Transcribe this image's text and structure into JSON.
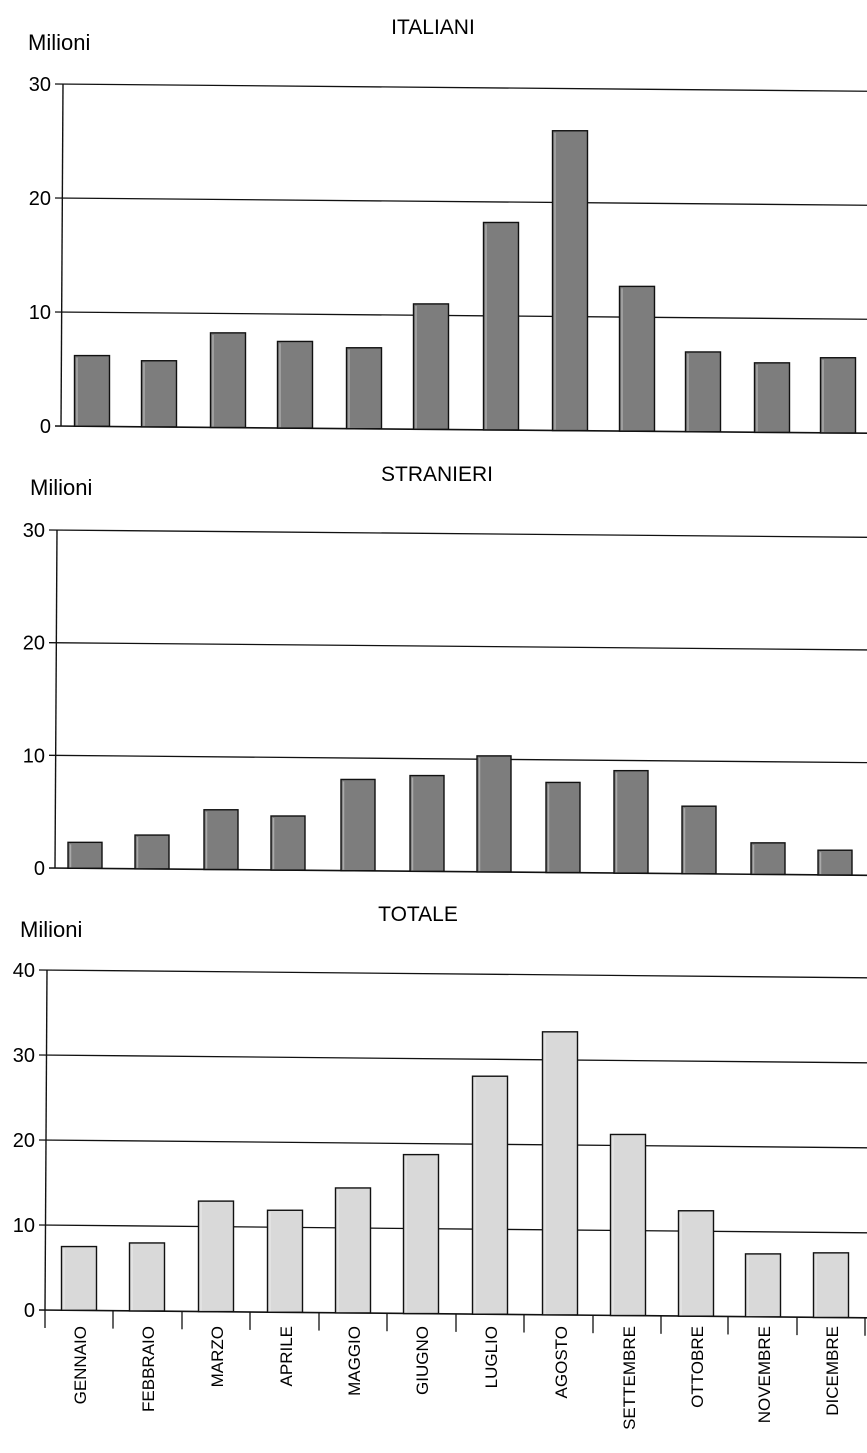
{
  "categories": [
    "GENNAIO",
    "FEBBRAIO",
    "MARZO",
    "APRILE",
    "MAGGIO",
    "GIUGNO",
    "LUGLIO",
    "AGOSTO",
    "SETTEMBRE",
    "OTTOBRE",
    "NOVEMBRE",
    "DICEMBRE"
  ],
  "colors": {
    "dark_bar": "#7d7d7d",
    "light_bar": "#d9d9d9",
    "line": "#111111",
    "background": "#ffffff"
  },
  "chart_data": [
    {
      "type": "bar",
      "title": "ITALIANI",
      "ylabel": "Milioni",
      "xlabel": "",
      "ylim": [
        0,
        30
      ],
      "yticks": [
        0,
        10,
        20,
        30
      ],
      "grid": true,
      "bar_color": "#7d7d7d",
      "categories": [
        "GENNAIO",
        "FEBBRAIO",
        "MARZO",
        "APRILE",
        "MAGGIO",
        "GIUGNO",
        "LUGLIO",
        "AGOSTO",
        "SETTEMBRE",
        "OTTOBRE",
        "NOVEMBRE",
        "DICEMBRE"
      ],
      "values": [
        6.2,
        5.8,
        8.3,
        7.6,
        7.1,
        11.0,
        18.2,
        26.3,
        12.7,
        7.0,
        6.1,
        6.6
      ]
    },
    {
      "type": "bar",
      "title": "STRANIERI",
      "ylabel": "Milioni",
      "xlabel": "",
      "ylim": [
        0,
        30
      ],
      "yticks": [
        0,
        10,
        20,
        30
      ],
      "grid": true,
      "bar_color": "#7d7d7d",
      "categories": [
        "GENNAIO",
        "FEBBRAIO",
        "MARZO",
        "APRILE",
        "MAGGIO",
        "GIUGNO",
        "LUGLIO",
        "AGOSTO",
        "SETTEMBRE",
        "OTTOBRE",
        "NOVEMBRE",
        "DICEMBRE"
      ],
      "values": [
        2.3,
        3.0,
        5.3,
        4.8,
        8.1,
        8.5,
        10.3,
        8.0,
        9.1,
        6.0,
        2.8,
        2.2
      ]
    },
    {
      "type": "bar",
      "title": "TOTALE",
      "ylabel": "Milioni",
      "xlabel": "",
      "ylim": [
        0,
        40
      ],
      "yticks": [
        0,
        10,
        20,
        30,
        40
      ],
      "grid": true,
      "bar_color": "#d9d9d9",
      "categories": [
        "GENNAIO",
        "FEBBRAIO",
        "MARZO",
        "APRILE",
        "MAGGIO",
        "GIUGNO",
        "LUGLIO",
        "AGOSTO",
        "SETTEMBRE",
        "OTTOBRE",
        "NOVEMBRE",
        "DICEMBRE"
      ],
      "values": [
        7.5,
        8.0,
        13.0,
        12.0,
        14.7,
        18.7,
        28.0,
        33.3,
        21.3,
        12.4,
        7.4,
        7.6
      ]
    }
  ]
}
